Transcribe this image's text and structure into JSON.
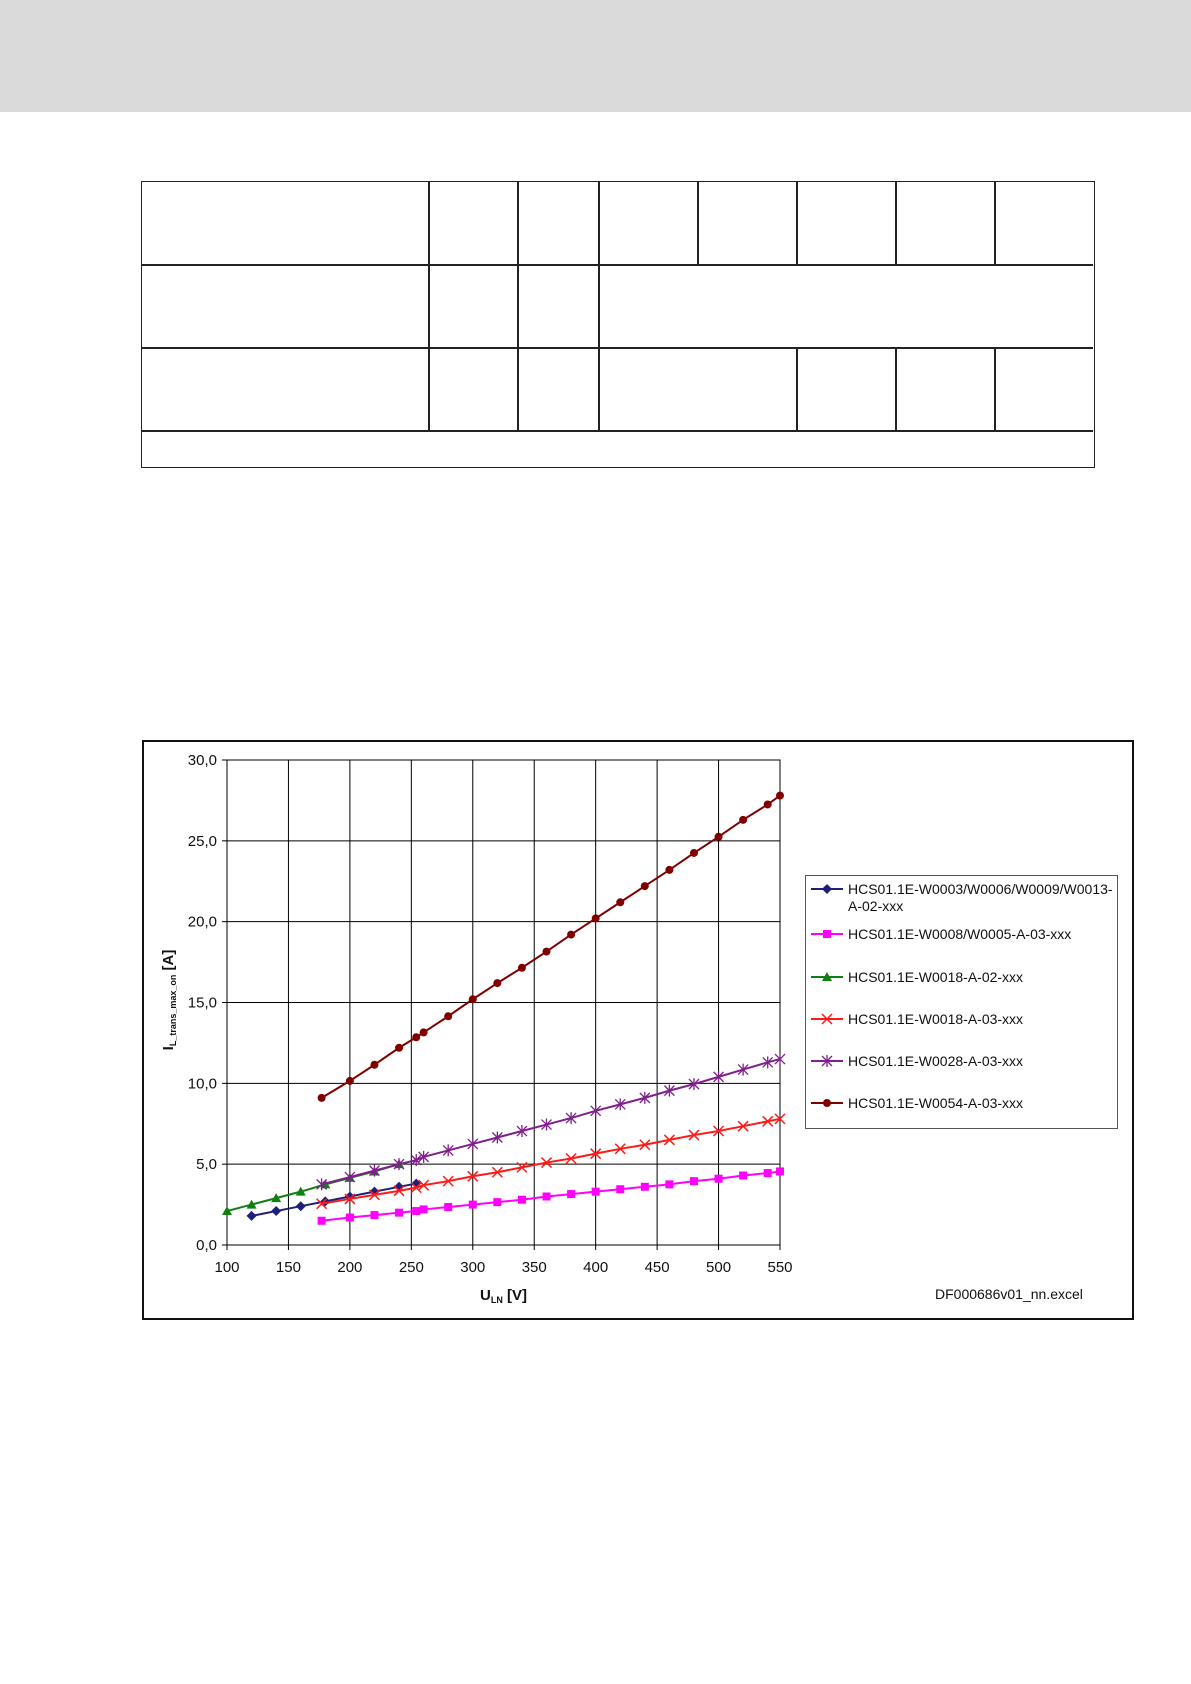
{
  "page": {
    "source_note": "DF000686v01_nn.excel"
  },
  "chart_data": {
    "type": "line",
    "xlabel_main": "U",
    "xlabel_sub": "LN",
    "xlabel_unit": " [V]",
    "ylabel_main": "I",
    "ylabel_sub": "L_trans_max_on",
    "ylabel_unit": " [A]",
    "xlim": [
      100,
      550
    ],
    "ylim": [
      0,
      30
    ],
    "x_ticks": [
      "100",
      "150",
      "200",
      "250",
      "300",
      "350",
      "400",
      "450",
      "500",
      "550"
    ],
    "y_ticks": [
      "0,0",
      "5,0",
      "10,0",
      "15,0",
      "20,0",
      "25,0",
      "30,0"
    ],
    "grid": true,
    "legend_position": "right",
    "series": [
      {
        "name": "HCS01.1E-W0003/W0006/W0009/W0013-A-02-xxx",
        "color": "#1f1f7a",
        "marker": "diamond",
        "x": [
          120,
          140,
          160,
          180,
          200,
          220,
          240,
          254
        ],
        "y": [
          1.8,
          2.1,
          2.4,
          2.7,
          3.0,
          3.3,
          3.6,
          3.8
        ]
      },
      {
        "name": "HCS01.1E-W0008/W0005-A-03-xxx",
        "color": "#ff00ff",
        "marker": "square",
        "x": [
          177,
          200,
          220,
          240,
          254,
          260,
          280,
          300,
          320,
          340,
          360,
          380,
          400,
          420,
          440,
          460,
          480,
          500,
          520,
          540,
          550
        ],
        "y": [
          1.5,
          1.7,
          1.85,
          2.0,
          2.1,
          2.2,
          2.35,
          2.5,
          2.65,
          2.8,
          3.0,
          3.15,
          3.3,
          3.45,
          3.6,
          3.75,
          3.95,
          4.1,
          4.3,
          4.45,
          4.55
        ]
      },
      {
        "name": "HCS01.1E-W0018-A-02-xxx",
        "color": "#108010",
        "marker": "triangle",
        "x": [
          100,
          120,
          140,
          160,
          180,
          200,
          220,
          240
        ],
        "y": [
          2.1,
          2.5,
          2.9,
          3.3,
          3.75,
          4.15,
          4.55,
          5.0
        ]
      },
      {
        "name": "HCS01.1E-W0018-A-03-xxx",
        "color": "#ff1a1a",
        "marker": "x",
        "x": [
          177,
          200,
          220,
          240,
          254,
          260,
          280,
          300,
          320,
          340,
          360,
          380,
          400,
          420,
          440,
          460,
          480,
          500,
          520,
          540,
          550
        ],
        "y": [
          2.55,
          2.85,
          3.1,
          3.35,
          3.55,
          3.7,
          3.95,
          4.25,
          4.5,
          4.8,
          5.1,
          5.35,
          5.65,
          5.95,
          6.2,
          6.5,
          6.8,
          7.05,
          7.35,
          7.65,
          7.8
        ]
      },
      {
        "name": "HCS01.1E-W0028-A-03-xxx",
        "color": "#80208c",
        "marker": "star",
        "x": [
          177,
          200,
          220,
          240,
          254,
          260,
          280,
          300,
          320,
          340,
          360,
          380,
          400,
          420,
          440,
          460,
          480,
          500,
          520,
          540,
          550
        ],
        "y": [
          3.75,
          4.2,
          4.6,
          5.0,
          5.25,
          5.45,
          5.85,
          6.25,
          6.65,
          7.05,
          7.45,
          7.85,
          8.3,
          8.7,
          9.1,
          9.55,
          9.95,
          10.4,
          10.85,
          11.3,
          11.5
        ]
      },
      {
        "name": "HCS01.1E-W0054-A-03-xxx",
        "color": "#800000",
        "marker": "circle",
        "x": [
          177,
          200,
          220,
          240,
          254,
          260,
          280,
          300,
          320,
          340,
          360,
          380,
          400,
          420,
          440,
          460,
          480,
          500,
          520,
          540,
          550
        ],
        "y": [
          9.1,
          10.15,
          11.15,
          12.2,
          12.85,
          13.15,
          14.15,
          15.2,
          16.2,
          17.15,
          18.15,
          19.2,
          20.2,
          21.2,
          22.2,
          23.2,
          24.25,
          25.25,
          26.3,
          27.25,
          27.8
        ]
      }
    ]
  }
}
